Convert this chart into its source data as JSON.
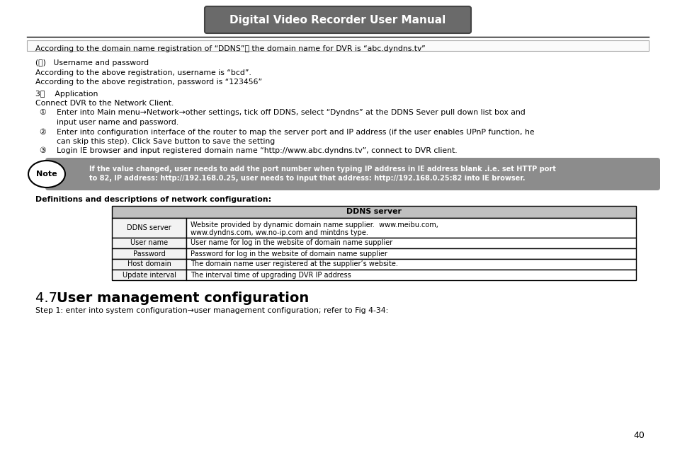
{
  "title": "Digital Video Recorder User Manual",
  "bg_color": "#ffffff",
  "line1": "According to the domain name registration of “DDNS”， the domain name for DVR is “abc.dyndns.tv”",
  "section2_header": "(２)   Username and password",
  "section2_line1": "According to the above registration, username is “bcd”.",
  "section2_line2": "According to the above registration, password is “123456”",
  "section3_header": "3。    Application",
  "section3_line1": "Connect DVR to the Network Client.",
  "circle1": "①",
  "step1": "Enter into Main menu→Network→other settings, tick off DDNS, select “Dyndns” at the DDNS Sever pull down list box and",
  "step1b": "input user name and password.",
  "circle2": "②",
  "step2": "Enter into configuration interface of the router to map the server port and IP address (if the user enables UPnP function, he",
  "step2b": "can skip this step). Click Save button to save the setting",
  "circle3": "③",
  "step3": "Login IE browser and input registered domain name “http://www.abc.dyndns.tv”, connect to DVR client.",
  "note_label": "Note",
  "note_text1": "If the value changed, user needs to add the port number when typing IP address in IE address blank .i.e. set HTTP port",
  "note_text2": "to 82, IP address: http://192.168.0.25, user needs to input that address: http://192.168.0.25:82 into IE browser.",
  "defs_header": "Definitions and descriptions of network configuration:",
  "table_header": "DDNS server",
  "table_rows": [
    [
      "DDNS server",
      "Website provided by dynamic domain name supplier.  www.meibu.com,\nwww.dyndns.com, ww.no-ip.com and mintdns type."
    ],
    [
      "User name",
      "User name for log in the website of domain name supplier"
    ],
    [
      "Password",
      "Password for log in the website of domain name supplier"
    ],
    [
      "Host domain",
      "The domain name user registered at the supplier’s website."
    ],
    [
      "Update interval",
      "The interval time of upgrading DVR IP address"
    ]
  ],
  "section47": "4.7",
  "section47_title": "User management configuration",
  "footer_line": "Step 1: enter into system configuration→user management configuration; refer to Fig 4-34:",
  "page_num": "40",
  "note_bg": "#8c8c8c",
  "table_header_bg": "#c0c0c0",
  "table_col1_bg": "#f2f2f2",
  "header_bg_grad1": "#9a9a9a",
  "header_bg_grad2": "#6a6a6a",
  "border_color": "#444444"
}
